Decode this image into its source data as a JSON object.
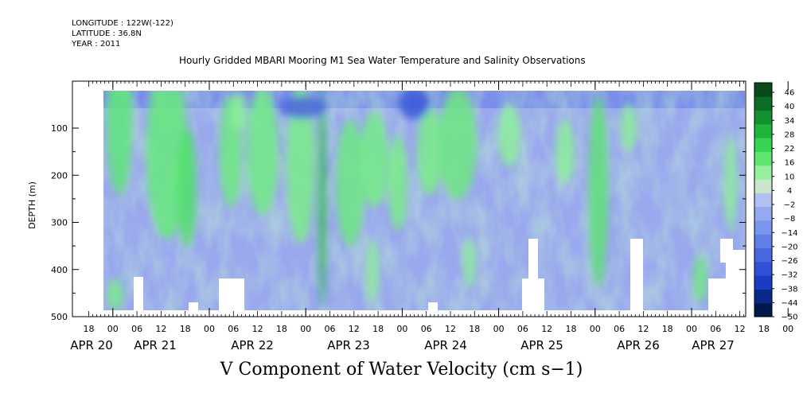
{
  "header": {
    "longitude": "LONGITUDE : 122W(-122)",
    "latitude": "LATITUDE : 36.8N",
    "year": "YEAR : 2011"
  },
  "chart_data": {
    "type": "heatmap",
    "title": "Hourly Gridded MBARI Mooring M1 Sea Water Temperature and Salinity Observations",
    "xlabel": "V Component of Water Velocity (cm s−1)",
    "ylabel": "DEPTH (m)",
    "ylim": [
      500,
      0
    ],
    "y_ticks": [
      100,
      200,
      300,
      400,
      500
    ],
    "x_hour_ticks": [
      "18",
      "00",
      "06",
      "12",
      "18",
      "00",
      "06",
      "12",
      "18",
      "00",
      "06",
      "12",
      "18",
      "00",
      "06",
      "12",
      "18",
      "00",
      "06",
      "12",
      "18",
      "00",
      "06",
      "12",
      "18",
      "00",
      "06",
      "12",
      "18",
      "00",
      "06",
      "12"
    ],
    "x_day_labels": [
      "APR 20",
      "APR 21",
      "APR 22",
      "APR 23",
      "APR 24",
      "APR 25",
      "APR 26",
      "APR 27"
    ],
    "colorbar_labels": [
      "46",
      "40",
      "34",
      "28",
      "22",
      "16",
      "10",
      "4",
      "−2",
      "−8",
      "−14",
      "−20",
      "−26",
      "−32",
      "−38",
      "−44",
      "−50"
    ],
    "colorbar_range": [
      -50,
      50
    ],
    "palette": [
      "#00184a",
      "#0a2a8a",
      "#1a3cc0",
      "#3050d8",
      "#4868e0",
      "#6080e8",
      "#7a96ee",
      "#94aaf0",
      "#b0c0f4",
      "#c8e6cc",
      "#96ee9e",
      "#60e670",
      "#36d450",
      "#22b43a",
      "#149030",
      "#0c6e26",
      "#084a1a"
    ],
    "grid": false,
    "data_note": ""
  }
}
